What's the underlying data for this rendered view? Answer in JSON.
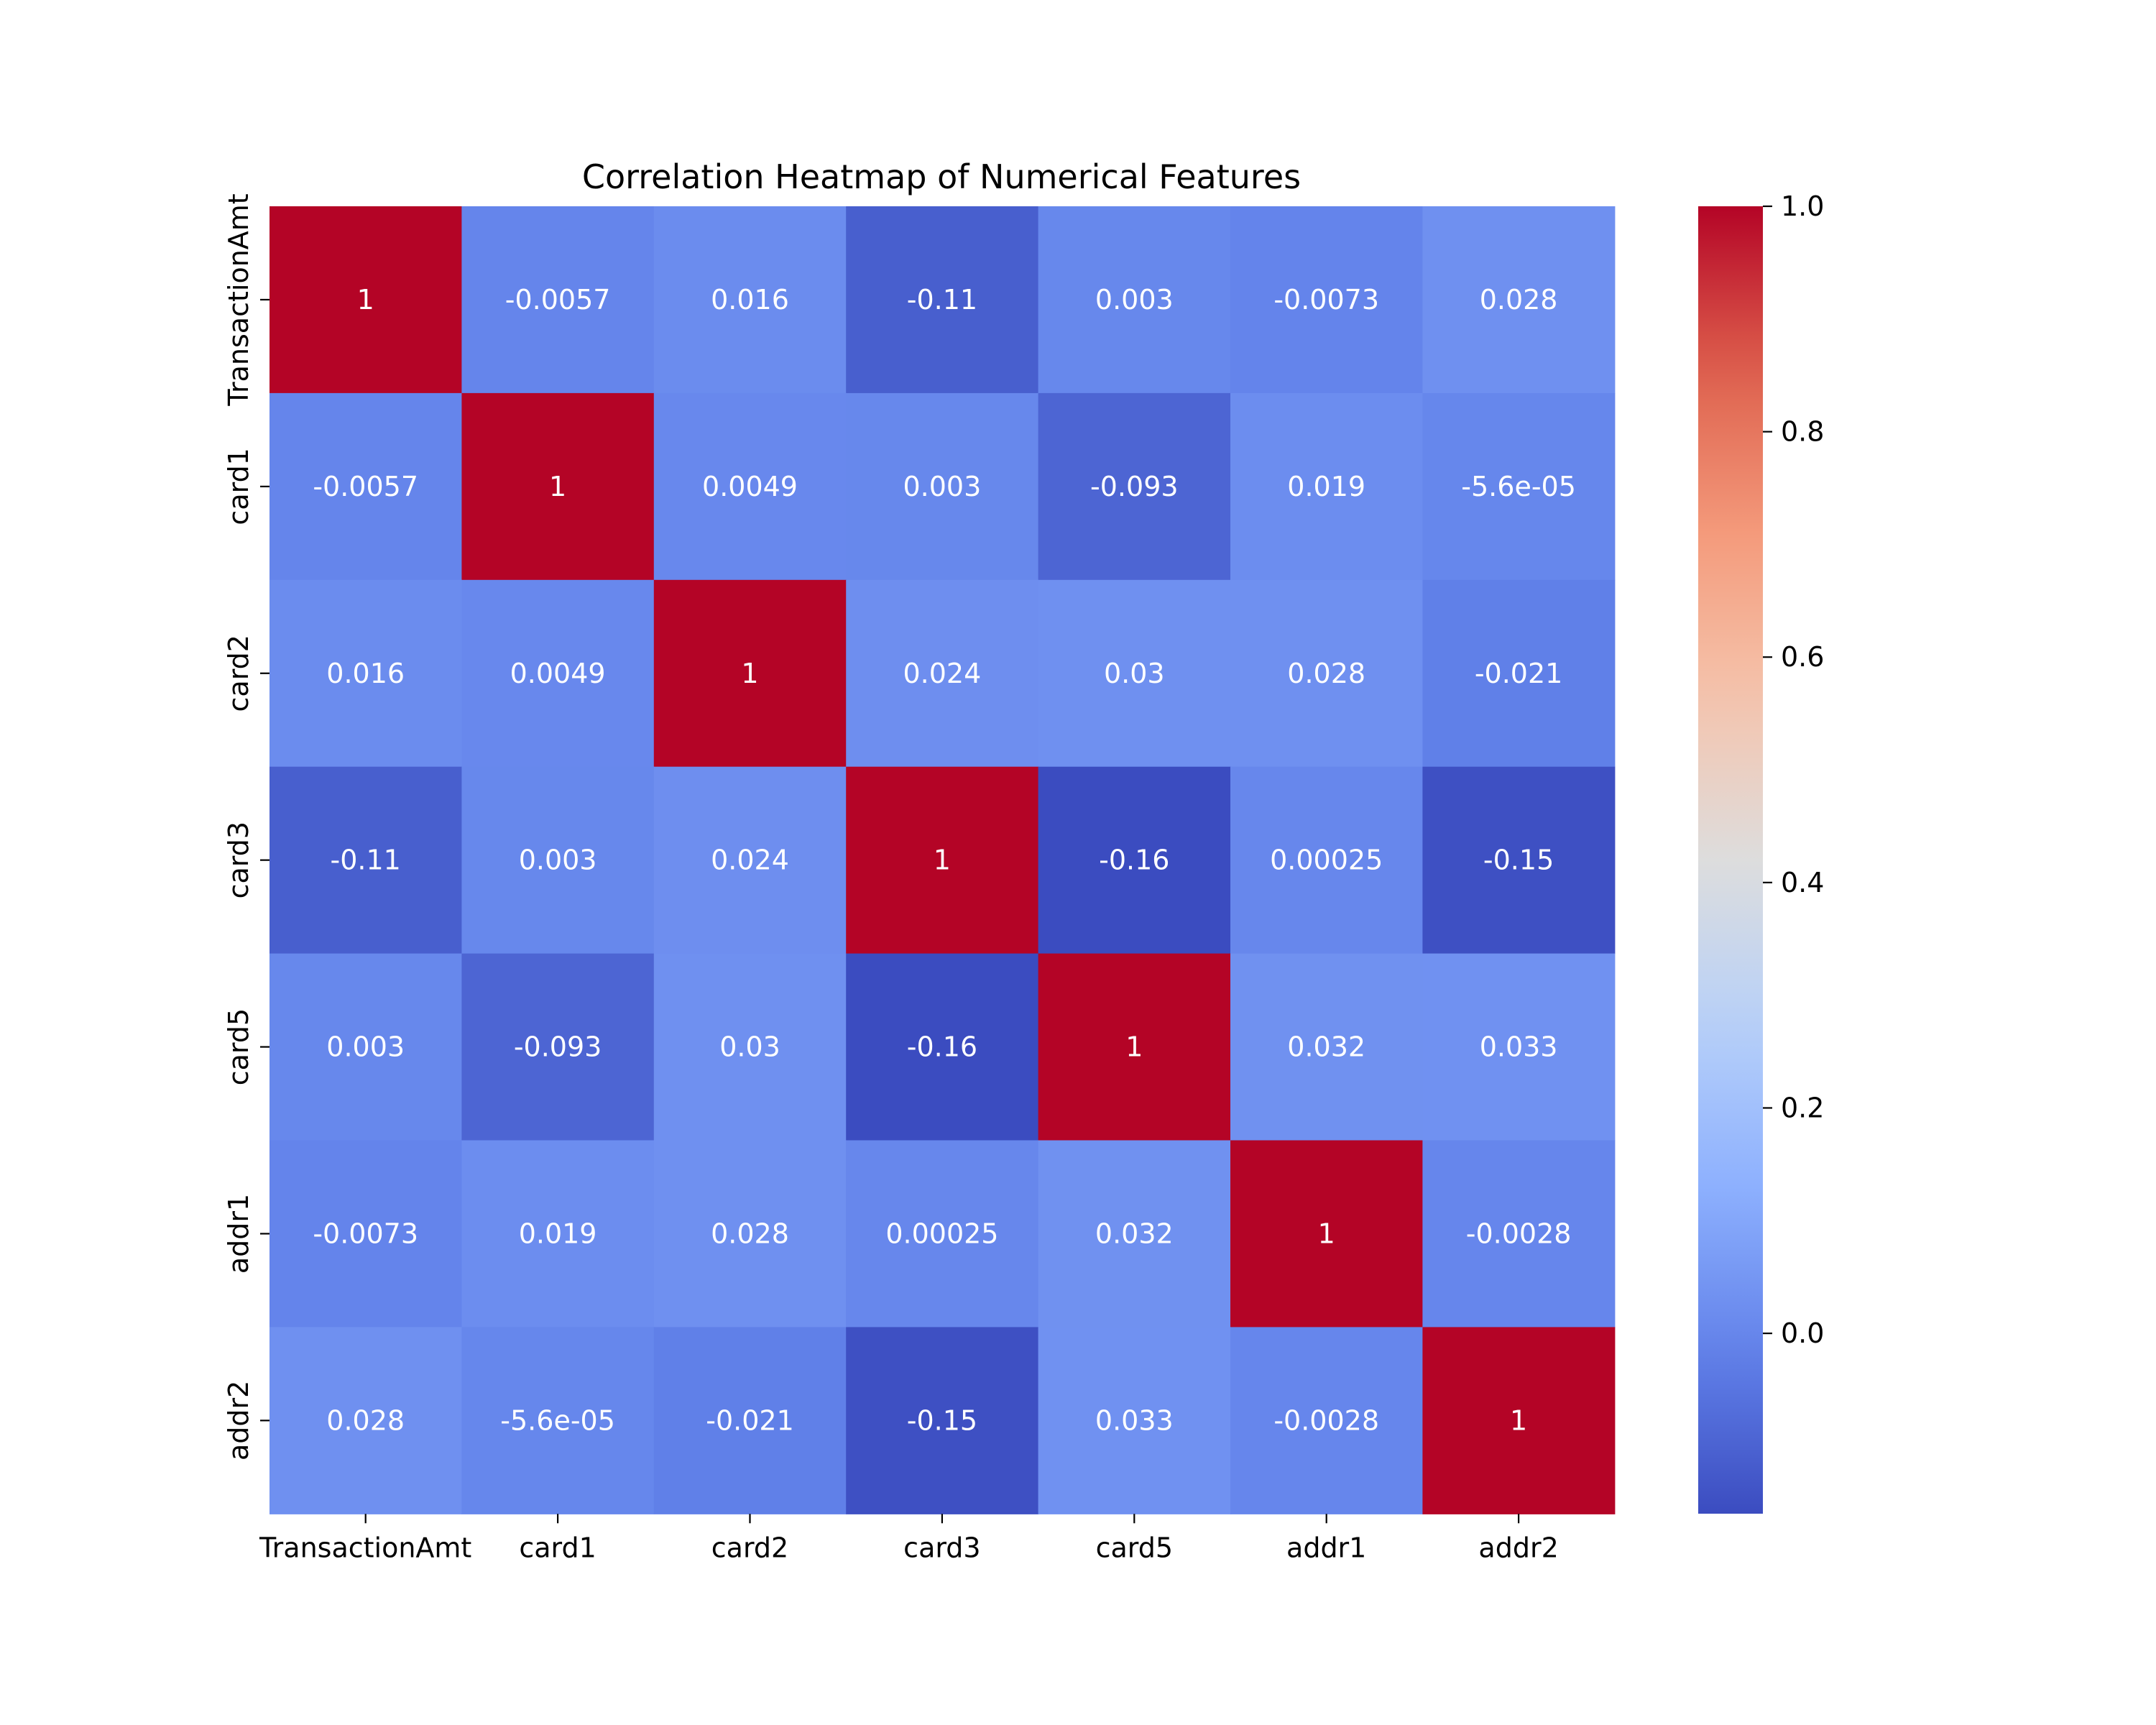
{
  "chart_data": {
    "type": "heatmap",
    "title": "Correlation Heatmap of Numerical Features",
    "xlabel": "",
    "ylabel": "",
    "x_categories": [
      "TransactionAmt",
      "card1",
      "card2",
      "card3",
      "card5",
      "addr1",
      "addr2"
    ],
    "y_categories": [
      "TransactionAmt",
      "card1",
      "card2",
      "card3",
      "card5",
      "addr1",
      "addr2"
    ],
    "values": [
      [
        1,
        -0.0057,
        0.016,
        -0.11,
        0.003,
        -0.0073,
        0.028
      ],
      [
        -0.0057,
        1,
        0.0049,
        0.003,
        -0.093,
        0.019,
        -5.6e-05
      ],
      [
        0.016,
        0.0049,
        1,
        0.024,
        0.03,
        0.028,
        -0.021
      ],
      [
        -0.11,
        0.003,
        0.024,
        1,
        -0.16,
        0.00025,
        -0.15
      ],
      [
        0.003,
        -0.093,
        0.03,
        -0.16,
        1,
        0.032,
        0.033
      ],
      [
        -0.0073,
        0.019,
        0.028,
        0.00025,
        0.032,
        1,
        -0.0028
      ],
      [
        0.028,
        -5.6e-05,
        -0.021,
        -0.15,
        0.033,
        -0.0028,
        1
      ]
    ],
    "annotations": [
      [
        "1",
        "-0.0057",
        "0.016",
        "-0.11",
        "0.003",
        "-0.0073",
        "0.028"
      ],
      [
        "-0.0057",
        "1",
        "0.0049",
        "0.003",
        "-0.093",
        "0.019",
        "-5.6e-05"
      ],
      [
        "0.016",
        "0.0049",
        "1",
        "0.024",
        "0.03",
        "0.028",
        "-0.021"
      ],
      [
        "-0.11",
        "0.003",
        "0.024",
        "1",
        "-0.16",
        "0.00025",
        "-0.15"
      ],
      [
        "0.003",
        "-0.093",
        "0.03",
        "-0.16",
        "1",
        "0.032",
        "0.033"
      ],
      [
        "-0.0073",
        "0.019",
        "0.028",
        "0.00025",
        "0.032",
        "1",
        "-0.0028"
      ],
      [
        "0.028",
        "-5.6e-05",
        "-0.021",
        "-0.15",
        "0.033",
        "-0.0028",
        "1"
      ]
    ],
    "colormap": "coolwarm",
    "vmin": -0.16,
    "vmax": 1.0,
    "colorbar": {
      "ticks": [
        0.0,
        0.2,
        0.4,
        0.6,
        0.8,
        1.0
      ],
      "tick_labels": [
        "0.0",
        "0.2",
        "0.4",
        "0.6",
        "0.8",
        "1.0"
      ],
      "placement": "right"
    },
    "grid": false,
    "annotation_colors": {
      "light": "#ffffff",
      "dark": "#262626"
    }
  }
}
